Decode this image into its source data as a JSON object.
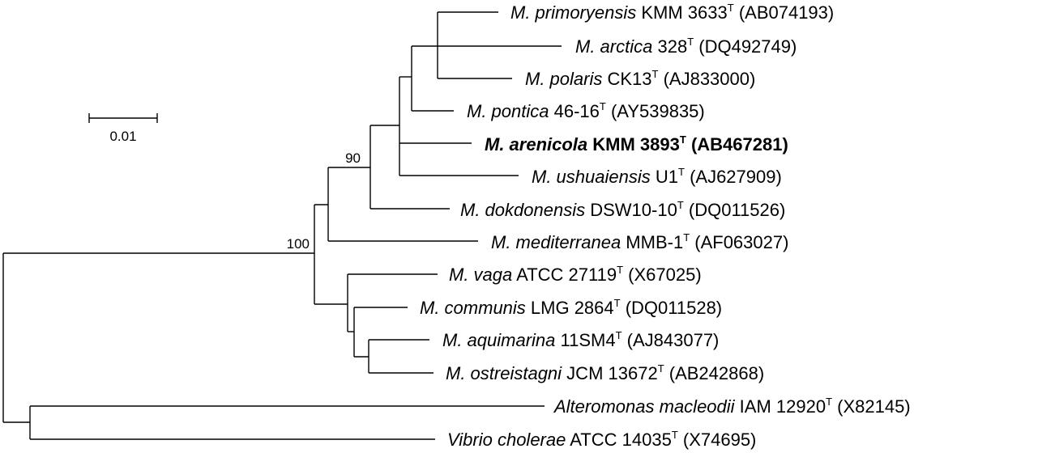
{
  "scale_bar": {
    "label": "0.01"
  },
  "bootstrap": [
    {
      "id": "b90",
      "value": "90"
    },
    {
      "id": "b100",
      "value": "100"
    }
  ],
  "leaves": [
    {
      "genus": "M. primoryensis",
      "strain": "KMM 3633",
      "type_mark": "T",
      "accession": "(AB074193)",
      "bold": false,
      "italic_full": false
    },
    {
      "genus": "M. arctica",
      "strain": "328",
      "type_mark": "T",
      "accession": "(DQ492749)",
      "bold": false,
      "italic_full": false
    },
    {
      "genus": "M. polaris",
      "strain": "CK13",
      "type_mark": "T",
      "accession": "(AJ833000)",
      "bold": false,
      "italic_full": false
    },
    {
      "genus": "M. pontica",
      "strain": "46-16",
      "type_mark": "T",
      "accession": "(AY539835)",
      "bold": false,
      "italic_full": false
    },
    {
      "genus": "M. arenicola",
      "strain": "KMM 3893",
      "type_mark": "T",
      "accession": "(AB467281)",
      "bold": true,
      "italic_full": false
    },
    {
      "genus": "M. ushuaiensis",
      "strain": "U1",
      "type_mark": "T",
      "accession": "(AJ627909)",
      "bold": false,
      "italic_full": false
    },
    {
      "genus": "M. dokdonensis",
      "strain": "DSW10-10",
      "type_mark": "T",
      "accession": "(DQ011526)",
      "bold": false,
      "italic_full": false
    },
    {
      "genus": "M. mediterranea",
      "strain": "MMB-1",
      "type_mark": "T",
      "accession": "(AF063027)",
      "bold": false,
      "italic_full": false
    },
    {
      "genus": "M. vaga",
      "strain": "ATCC 27119",
      "type_mark": "T",
      "accession": "(X67025)",
      "bold": false,
      "italic_full": false
    },
    {
      "genus": "M. communis",
      "strain": "LMG 2864",
      "type_mark": "T",
      "accession": "(DQ011528)",
      "bold": false,
      "italic_full": false
    },
    {
      "genus": "M. aquimarina",
      "strain": "11SM4",
      "type_mark": "T",
      "accession": "(AJ843077)",
      "bold": false,
      "italic_full": false
    },
    {
      "genus": "M. ostreistagni",
      "strain": "JCM 13672",
      "type_mark": "T",
      "accession": "(AB242868)",
      "bold": false,
      "italic_full": false
    },
    {
      "genus": "Alteromonas macleodii",
      "strain": "IAM 12920",
      "type_mark": "T",
      "accession": "(X82145)",
      "bold": false,
      "italic_full": true
    },
    {
      "genus": "Vibrio cholerae",
      "strain": "ATCC 14035",
      "type_mark": "T",
      "accession": "(X74695)",
      "bold": false,
      "italic_full": true
    }
  ]
}
